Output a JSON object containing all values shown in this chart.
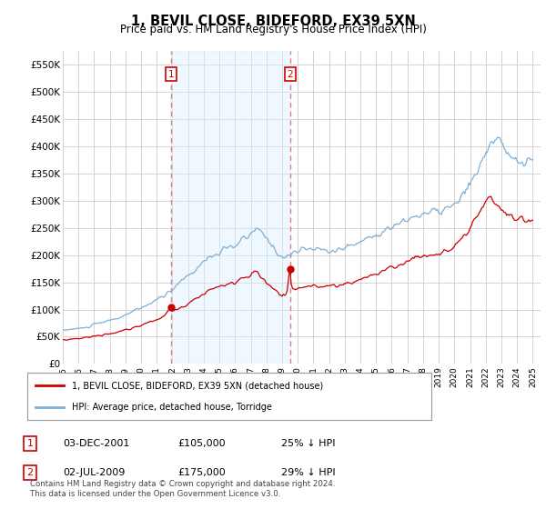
{
  "title": "1, BEVIL CLOSE, BIDEFORD, EX39 5XN",
  "subtitle": "Price paid vs. HM Land Registry's House Price Index (HPI)",
  "legend_label_red": "1, BEVIL CLOSE, BIDEFORD, EX39 5XN (detached house)",
  "legend_label_blue": "HPI: Average price, detached house, Torridge",
  "footnote": "Contains HM Land Registry data © Crown copyright and database right 2024.\nThis data is licensed under the Open Government Licence v3.0.",
  "table_rows": [
    {
      "num": "1",
      "date": "03-DEC-2001",
      "price": "£105,000",
      "hpi": "25% ↓ HPI"
    },
    {
      "num": "2",
      "date": "02-JUL-2009",
      "price": "£175,000",
      "hpi": "29% ↓ HPI"
    }
  ],
  "sale1_x": 2001.92,
  "sale1_y": 105000,
  "sale2_x": 2009.5,
  "sale2_y": 175000,
  "vline1_x": 2001.92,
  "vline2_x": 2009.5,
  "shade_x1": 2001.92,
  "shade_x2": 2009.5,
  "ylim": [
    0,
    575000
  ],
  "xlim_start": 1995.0,
  "xlim_end": 2025.5,
  "background_color": "#ffffff",
  "grid_color": "#cccccc",
  "red_color": "#cc0000",
  "blue_color": "#7fafd4",
  "vline_color": "#e08080",
  "shade_color": "#ddeeff",
  "shade_alpha": 0.45
}
